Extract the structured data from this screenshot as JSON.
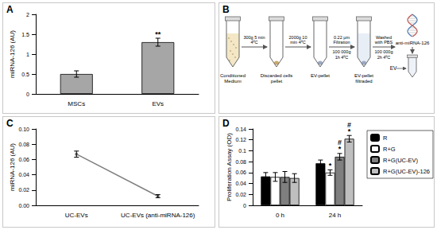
{
  "panels": [
    "A",
    "B",
    "C",
    "D"
  ],
  "chart_data": [
    {
      "panel": "A",
      "type": "bar",
      "categories": [
        "MSCs",
        "EVs"
      ],
      "values": [
        0.5,
        1.3
      ],
      "errors": [
        0.08,
        0.1
      ],
      "annotations": [
        null,
        [
          "**"
        ]
      ],
      "y_label": "miRNA-126 (AU)",
      "color": "#a6a6a6",
      "ylim": [
        0,
        2
      ],
      "yticks": [
        0,
        0.5,
        1,
        1.5,
        2
      ],
      "grid": false
    },
    {
      "panel": "C",
      "type": "line",
      "categories": [
        "UC-EVs",
        "UC-EVs (anti-miRNA-126)"
      ],
      "values": [
        0.067,
        0.012
      ],
      "errors": [
        0.004,
        0.002
      ],
      "y_label": "miRNA-126 (AU)",
      "color": "#7f7f7f",
      "marker": "circle",
      "ylim": [
        0,
        0.1
      ],
      "yticks": [
        {
          "value": 0,
          "label": "0.00"
        },
        {
          "value": 0.02,
          "label": "0.02"
        },
        {
          "value": 0.04,
          "label": "0.04"
        },
        {
          "value": 0.06,
          "label": "0.06"
        },
        {
          "value": 0.08,
          "label": "0.08"
        },
        {
          "value": 0.1,
          "label": "0.10"
        }
      ],
      "grid": false
    },
    {
      "panel": "D",
      "type": "bar",
      "categories": [
        "0 h",
        "24 h"
      ],
      "y_label": "Proliferation Assay (OD)",
      "series": [
        {
          "name": "R",
          "color": "#000000",
          "values": [
            0.053,
            0.077
          ],
          "errors": [
            0.007,
            0.006
          ],
          "annotations": [
            null,
            null
          ]
        },
        {
          "name": "R+G",
          "color": "#ffffff",
          "values": [
            0.052,
            0.06
          ],
          "errors": [
            0.008,
            0.005
          ],
          "annotations": [
            null,
            [
              "*"
            ]
          ]
        },
        {
          "name": "R+G(UC-EV)",
          "color": "#7f7f7f",
          "values": [
            0.052,
            0.089
          ],
          "errors": [
            0.01,
            0.006
          ],
          "annotations": [
            null,
            [
              "#",
              "*"
            ]
          ]
        },
        {
          "name": "R+G(UC-EV)-126",
          "color": "#bfbfbf",
          "values": [
            0.05,
            0.122
          ],
          "errors": [
            0.008,
            0.006
          ],
          "annotations": [
            null,
            [
              "#",
              "*"
            ]
          ]
        }
      ],
      "ylim": [
        0,
        0.14
      ],
      "yticks": [
        0,
        0.02,
        0.04,
        0.06,
        0.08,
        0.1,
        0.12,
        0.14
      ],
      "legend": "right",
      "grid": false
    }
  ],
  "diagram": {
    "panel": "B",
    "tubes": [
      "Conditioned Medium",
      "Discarded cells pellet",
      "EV-pellet",
      "EV-pellet filtraded"
    ],
    "steps": [
      [
        "300g 5 min 4ºC"
      ],
      [
        "2000g 10 min 4ºC"
      ],
      [
        "0.22 µm Filtration",
        "100 000g 1h 4ºC"
      ],
      [
        "Washed with PBS",
        "100 000g 2h 4ºC"
      ]
    ],
    "product": "anti-miRNA-126",
    "product_tube": "EV"
  }
}
